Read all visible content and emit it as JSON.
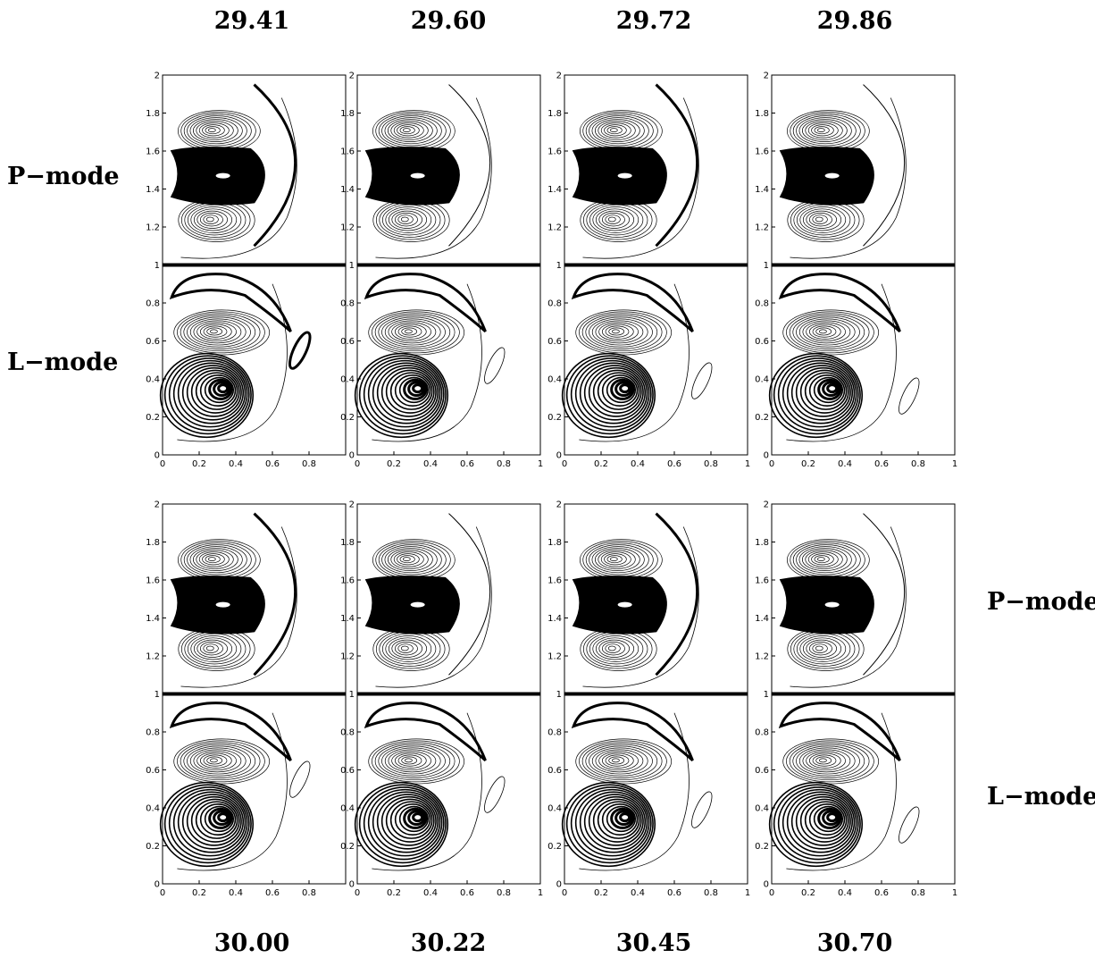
{
  "top_values": [
    "29.41",
    "29.60",
    "29.72",
    "29.86"
  ],
  "bottom_values": [
    "30.00",
    "30.22",
    "30.45",
    "30.70"
  ],
  "mode_labels": {
    "top_p": "P−mode",
    "top_l": "L−mode",
    "bottom_p": "P−mode",
    "bottom_l": "L−mode"
  },
  "y_ticks": [
    "0",
    "0.2",
    "0.4",
    "0.6",
    "0.8",
    "1",
    "1.2",
    "1.4",
    "1.6",
    "1.8",
    "2"
  ],
  "x_ticks_full": [
    "0",
    "0.2",
    "0.4",
    "0.6",
    "0.8",
    "1"
  ],
  "x_ticks_short": [
    "0",
    "0.2",
    "0.4",
    "0.6",
    "0.8"
  ],
  "panels": [
    {
      "value": "29.41",
      "x_ticks": "short"
    },
    {
      "value": "29.60",
      "x_ticks": "full"
    },
    {
      "value": "29.72",
      "x_ticks": "full"
    },
    {
      "value": "29.86",
      "x_ticks": "full"
    },
    {
      "value": "30.00",
      "x_ticks": "short"
    },
    {
      "value": "30.22",
      "x_ticks": "full"
    },
    {
      "value": "30.45",
      "x_ticks": "full"
    },
    {
      "value": "30.70",
      "x_ticks": "full"
    }
  ],
  "colors": {
    "ink": "#000000",
    "background": "#ffffff"
  }
}
